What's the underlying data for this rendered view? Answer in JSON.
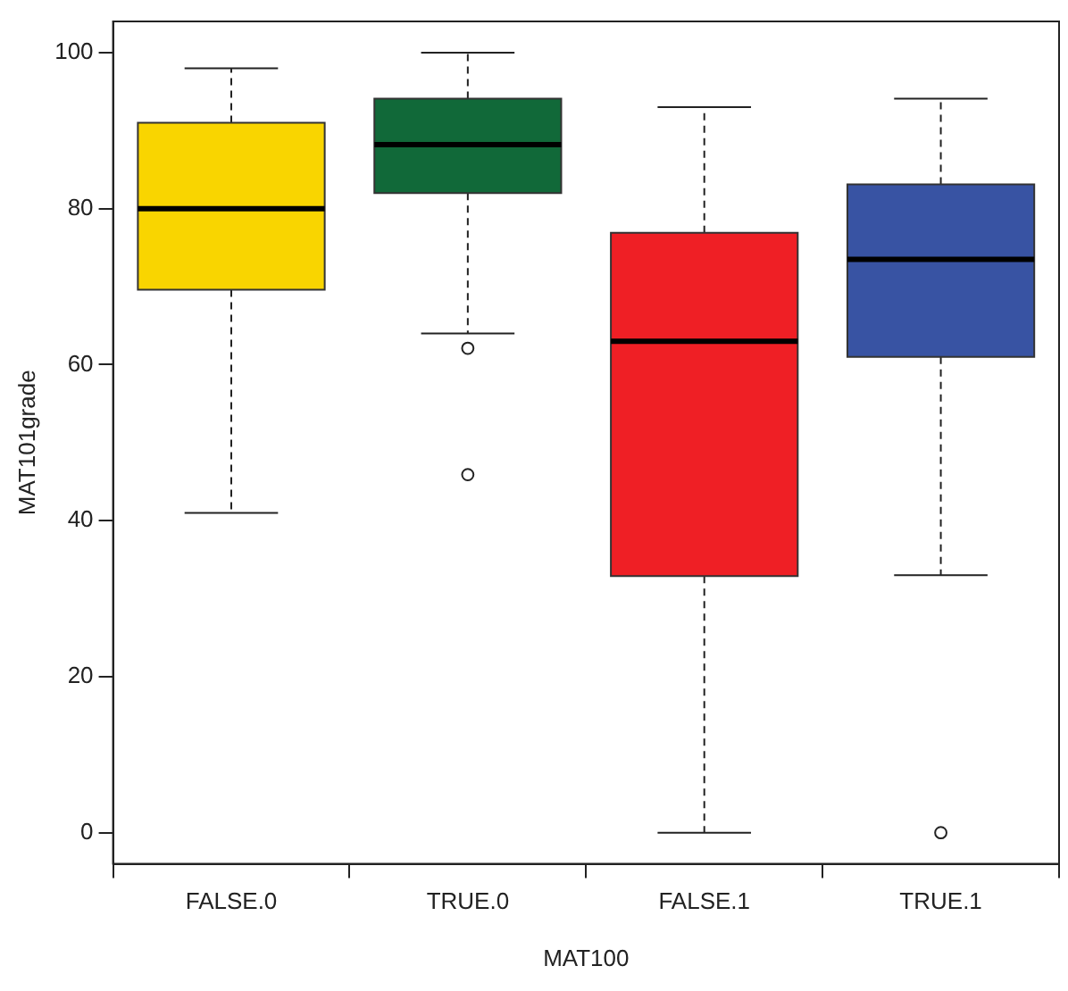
{
  "chart_data": {
    "type": "box",
    "xlabel": "MAT100",
    "ylabel": "MAT101grade",
    "categories": [
      "FALSE.0",
      "TRUE.0",
      "FALSE.1",
      "TRUE.1"
    ],
    "colors": [
      "#f9d500",
      "#116939",
      "#ef1f25",
      "#3853a3"
    ],
    "boxes": [
      {
        "low": 41,
        "q1": 69.6,
        "median": 80,
        "q3": 91,
        "high": 98
      },
      {
        "low": 64,
        "q1": 82,
        "median": 88.2,
        "q3": 94.1,
        "high": 100,
        "outliers": [
          62.1,
          45.9
        ]
      },
      {
        "low": 0,
        "q1": 32.9,
        "median": 63,
        "q3": 76.9,
        "high": 93
      },
      {
        "low": 33,
        "q1": 61,
        "median": 73.5,
        "q3": 83.1,
        "high": 94.1,
        "outliers": [
          0
        ]
      }
    ],
    "ylim": [
      -4,
      104
    ],
    "yticks": [
      0,
      20,
      40,
      60,
      80,
      100
    ]
  }
}
